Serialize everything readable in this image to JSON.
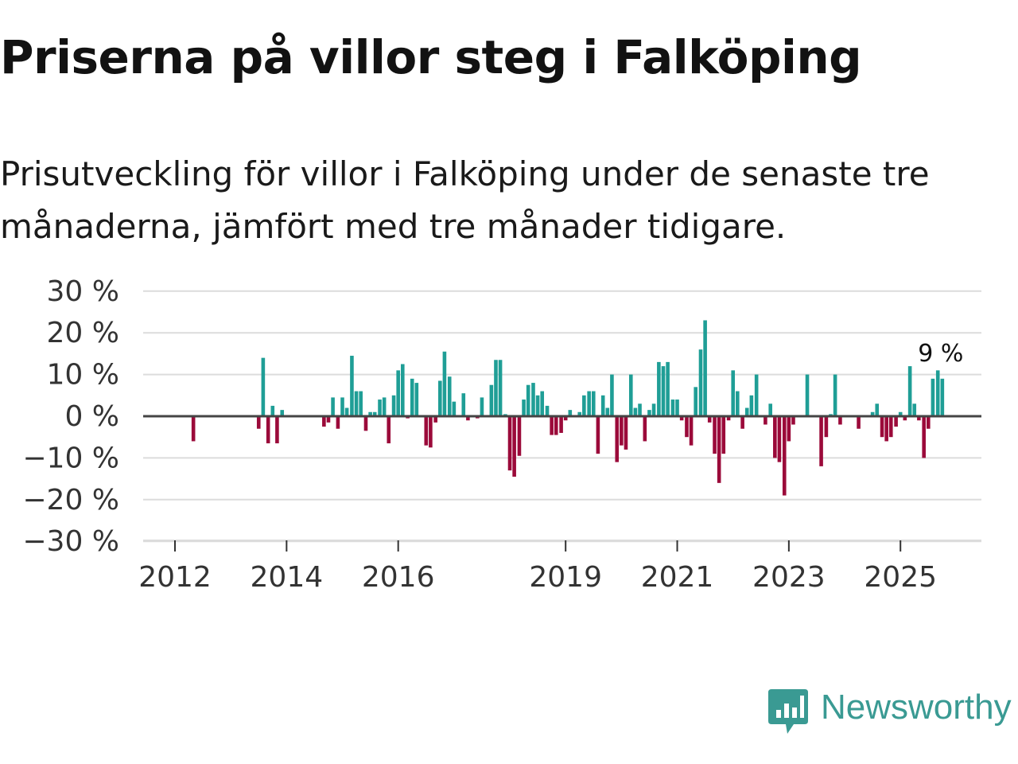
{
  "title": "Priserna på villor steg i Falköping",
  "subtitle": "Prisutveckling för villor i Falköping under de senaste tre månaderna, jämfört med tre månader tidigare.",
  "brand": {
    "name": "Newsworthy",
    "icon": "newsworthy-logo-icon",
    "color": "#3a9a93"
  },
  "chart_data": {
    "type": "bar",
    "title": "Priserna på villor steg i Falköping",
    "xlabel": "",
    "ylabel": "",
    "ylim": [
      -30,
      30
    ],
    "yticks": [
      30,
      20,
      10,
      0,
      -10,
      -20,
      -30
    ],
    "ytick_labels": [
      "30 %",
      "20 %",
      "10 %",
      "0 %",
      "−10 %",
      "−20 %",
      "−30 %"
    ],
    "xtick_labels": [
      {
        "year": 2012,
        "label": "2012"
      },
      {
        "year": 2014,
        "label": "2014"
      },
      {
        "year": 2016,
        "label": "2016"
      },
      {
        "year": 2019,
        "label": "2019"
      },
      {
        "year": 2021,
        "label": "2021"
      },
      {
        "year": 2023,
        "label": "2023"
      },
      {
        "year": 2025,
        "label": "2025"
      }
    ],
    "x_start": 2012.0,
    "x_step": 0.0833,
    "colors": {
      "positive": "#1f9e96",
      "negative": "#9b0a3a"
    },
    "last_label": "9 %",
    "values": [
      null,
      null,
      null,
      null,
      null,
      null,
      null,
      -6,
      null,
      null,
      null,
      null,
      null,
      null,
      null,
      null,
      null,
      null,
      null,
      null,
      null,
      null,
      null,
      null,
      null,
      null,
      null,
      null,
      null,
      null,
      null,
      null,
      null,
      null,
      null,
      null,
      null,
      null,
      null,
      null,
      null,
      null,
      null,
      null,
      null,
      null,
      null,
      null,
      null,
      null,
      null,
      null,
      null,
      null,
      null,
      null,
      null,
      null,
      null,
      null,
      null,
      null,
      null,
      null,
      null,
      null,
      null,
      null,
      null,
      null,
      null,
      null,
      null,
      null,
      null,
      null,
      null,
      null,
      null,
      null,
      null,
      null,
      null,
      null,
      null,
      null,
      null,
      null,
      null,
      null,
      null,
      null,
      null,
      null,
      null,
      null,
      null,
      null,
      null,
      null,
      null,
      null,
      null,
      null,
      null,
      null,
      null,
      null,
      null,
      null,
      null,
      null,
      null,
      null,
      null,
      null,
      null,
      null,
      null,
      null,
      null,
      null,
      null,
      null,
      null,
      null,
      null,
      null,
      null,
      null,
      null,
      null,
      null,
      null,
      null,
      null,
      null,
      null,
      null,
      null,
      null,
      null,
      null,
      null,
      null,
      null,
      null,
      null,
      null,
      null,
      null,
      null,
      null,
      null,
      null,
      null,
      null,
      null,
      null,
      null,
      null,
      null,
      null,
      null,
      null,
      null,
      null,
      null
    ],
    "bars": [
      {
        "x": 2012.33,
        "value": -6
      },
      {
        "x": 2013.5,
        "value": -3
      },
      {
        "x": 2013.58,
        "value": 14
      },
      {
        "x": 2013.67,
        "value": -6.5
      },
      {
        "x": 2013.75,
        "value": 2.5
      },
      {
        "x": 2013.83,
        "value": -6.5
      },
      {
        "x": 2013.92,
        "value": 1.5
      },
      {
        "x": 2014.67,
        "value": -2.5
      },
      {
        "x": 2014.75,
        "value": -1.5
      },
      {
        "x": 2014.83,
        "value": 4.5
      },
      {
        "x": 2014.92,
        "value": -3
      },
      {
        "x": 2015.0,
        "value": 4.5
      },
      {
        "x": 2015.08,
        "value": 2
      },
      {
        "x": 2015.17,
        "value": 14.5
      },
      {
        "x": 2015.25,
        "value": 6
      },
      {
        "x": 2015.33,
        "value": 6
      },
      {
        "x": 2015.42,
        "value": -3.5
      },
      {
        "x": 2015.5,
        "value": 1
      },
      {
        "x": 2015.58,
        "value": 1
      },
      {
        "x": 2015.67,
        "value": 4
      },
      {
        "x": 2015.75,
        "value": 4.5
      },
      {
        "x": 2015.83,
        "value": -6.5
      },
      {
        "x": 2015.92,
        "value": 5
      },
      {
        "x": 2016.0,
        "value": 11
      },
      {
        "x": 2016.08,
        "value": 12.5
      },
      {
        "x": 2016.17,
        "value": -0.5
      },
      {
        "x": 2016.25,
        "value": 9
      },
      {
        "x": 2016.33,
        "value": 8
      },
      {
        "x": 2016.5,
        "value": -7
      },
      {
        "x": 2016.58,
        "value": -7.5
      },
      {
        "x": 2016.67,
        "value": -1.5
      },
      {
        "x": 2016.75,
        "value": 8.5
      },
      {
        "x": 2016.83,
        "value": 15.5
      },
      {
        "x": 2016.92,
        "value": 9.5
      },
      {
        "x": 2017.0,
        "value": 3.5
      },
      {
        "x": 2017.17,
        "value": 5.5
      },
      {
        "x": 2017.25,
        "value": -1
      },
      {
        "x": 2017.42,
        "value": -0.5
      },
      {
        "x": 2017.5,
        "value": 4.5
      },
      {
        "x": 2017.67,
        "value": 7.5
      },
      {
        "x": 2017.75,
        "value": 13.5
      },
      {
        "x": 2017.83,
        "value": 13.5
      },
      {
        "x": 2017.92,
        "value": 0.5
      },
      {
        "x": 2018.0,
        "value": -13
      },
      {
        "x": 2018.08,
        "value": -14.5
      },
      {
        "x": 2018.17,
        "value": -9.5
      },
      {
        "x": 2018.25,
        "value": 4
      },
      {
        "x": 2018.33,
        "value": 7.5
      },
      {
        "x": 2018.42,
        "value": 8
      },
      {
        "x": 2018.5,
        "value": 5
      },
      {
        "x": 2018.58,
        "value": 6
      },
      {
        "x": 2018.67,
        "value": 2.5
      },
      {
        "x": 2018.75,
        "value": -4.5
      },
      {
        "x": 2018.83,
        "value": -4.5
      },
      {
        "x": 2018.92,
        "value": -4
      },
      {
        "x": 2019.0,
        "value": -1
      },
      {
        "x": 2019.08,
        "value": 1.5
      },
      {
        "x": 2019.25,
        "value": 1
      },
      {
        "x": 2019.33,
        "value": 5
      },
      {
        "x": 2019.42,
        "value": 6
      },
      {
        "x": 2019.5,
        "value": 6
      },
      {
        "x": 2019.58,
        "value": -9
      },
      {
        "x": 2019.67,
        "value": 5
      },
      {
        "x": 2019.75,
        "value": 2
      },
      {
        "x": 2019.83,
        "value": 10
      },
      {
        "x": 2019.92,
        "value": -11
      },
      {
        "x": 2020.0,
        "value": -7
      },
      {
        "x": 2020.08,
        "value": -8
      },
      {
        "x": 2020.17,
        "value": 10
      },
      {
        "x": 2020.25,
        "value": 2
      },
      {
        "x": 2020.33,
        "value": 3
      },
      {
        "x": 2020.42,
        "value": -6
      },
      {
        "x": 2020.5,
        "value": 1.5
      },
      {
        "x": 2020.58,
        "value": 3
      },
      {
        "x": 2020.67,
        "value": 13
      },
      {
        "x": 2020.75,
        "value": 12
      },
      {
        "x": 2020.83,
        "value": 13
      },
      {
        "x": 2020.92,
        "value": 4
      },
      {
        "x": 2021.0,
        "value": 4
      },
      {
        "x": 2021.08,
        "value": -1
      },
      {
        "x": 2021.17,
        "value": -5
      },
      {
        "x": 2021.25,
        "value": -7
      },
      {
        "x": 2021.33,
        "value": 7
      },
      {
        "x": 2021.42,
        "value": 16
      },
      {
        "x": 2021.5,
        "value": 23
      },
      {
        "x": 2021.58,
        "value": -1.5
      },
      {
        "x": 2021.67,
        "value": -9
      },
      {
        "x": 2021.75,
        "value": -16
      },
      {
        "x": 2021.83,
        "value": -9
      },
      {
        "x": 2021.92,
        "value": -1
      },
      {
        "x": 2022.0,
        "value": 11
      },
      {
        "x": 2022.08,
        "value": 6
      },
      {
        "x": 2022.17,
        "value": -3
      },
      {
        "x": 2022.25,
        "value": 2
      },
      {
        "x": 2022.33,
        "value": 5
      },
      {
        "x": 2022.42,
        "value": 10
      },
      {
        "x": 2022.58,
        "value": -2
      },
      {
        "x": 2022.67,
        "value": 3
      },
      {
        "x": 2022.75,
        "value": -10
      },
      {
        "x": 2022.83,
        "value": -11
      },
      {
        "x": 2022.92,
        "value": -19
      },
      {
        "x": 2023.0,
        "value": -6
      },
      {
        "x": 2023.08,
        "value": -2
      },
      {
        "x": 2023.33,
        "value": 10
      },
      {
        "x": 2023.58,
        "value": -12
      },
      {
        "x": 2023.67,
        "value": -5
      },
      {
        "x": 2023.75,
        "value": 0.5
      },
      {
        "x": 2023.83,
        "value": 10
      },
      {
        "x": 2023.92,
        "value": -2
      },
      {
        "x": 2024.25,
        "value": -3
      },
      {
        "x": 2024.5,
        "value": 1
      },
      {
        "x": 2024.58,
        "value": 3
      },
      {
        "x": 2024.67,
        "value": -5
      },
      {
        "x": 2024.75,
        "value": -6
      },
      {
        "x": 2024.83,
        "value": -5
      },
      {
        "x": 2024.92,
        "value": -2.5
      },
      {
        "x": 2025.0,
        "value": 1
      },
      {
        "x": 2025.08,
        "value": -1
      },
      {
        "x": 2025.17,
        "value": 12
      },
      {
        "x": 2025.25,
        "value": 3
      },
      {
        "x": 2025.33,
        "value": -1
      },
      {
        "x": 2025.42,
        "value": -10
      },
      {
        "x": 2025.5,
        "value": -3
      },
      {
        "x": 2025.58,
        "value": 9
      },
      {
        "x": 2025.67,
        "value": 11
      },
      {
        "x": 2025.75,
        "value": 9
      }
    ]
  }
}
